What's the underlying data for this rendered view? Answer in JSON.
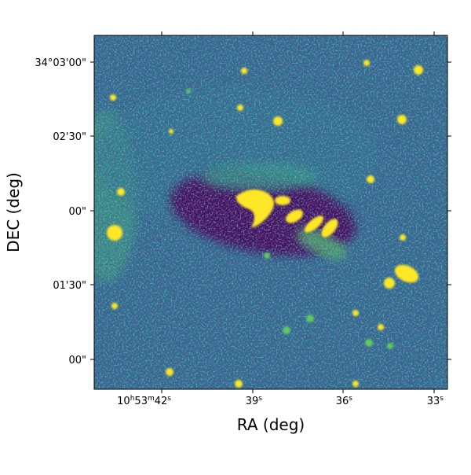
{
  "chart_data": {
    "type": "image",
    "xlabel": "RA (deg)",
    "ylabel": "DEC (deg)",
    "xtick_labels": [
      "10h53m42s",
      "39s",
      "36s",
      "33s"
    ],
    "ytick_labels": [
      "34°03'00\"",
      "02'30\"",
      "00\"",
      "01'30\"",
      "00\""
    ]
  }
}
